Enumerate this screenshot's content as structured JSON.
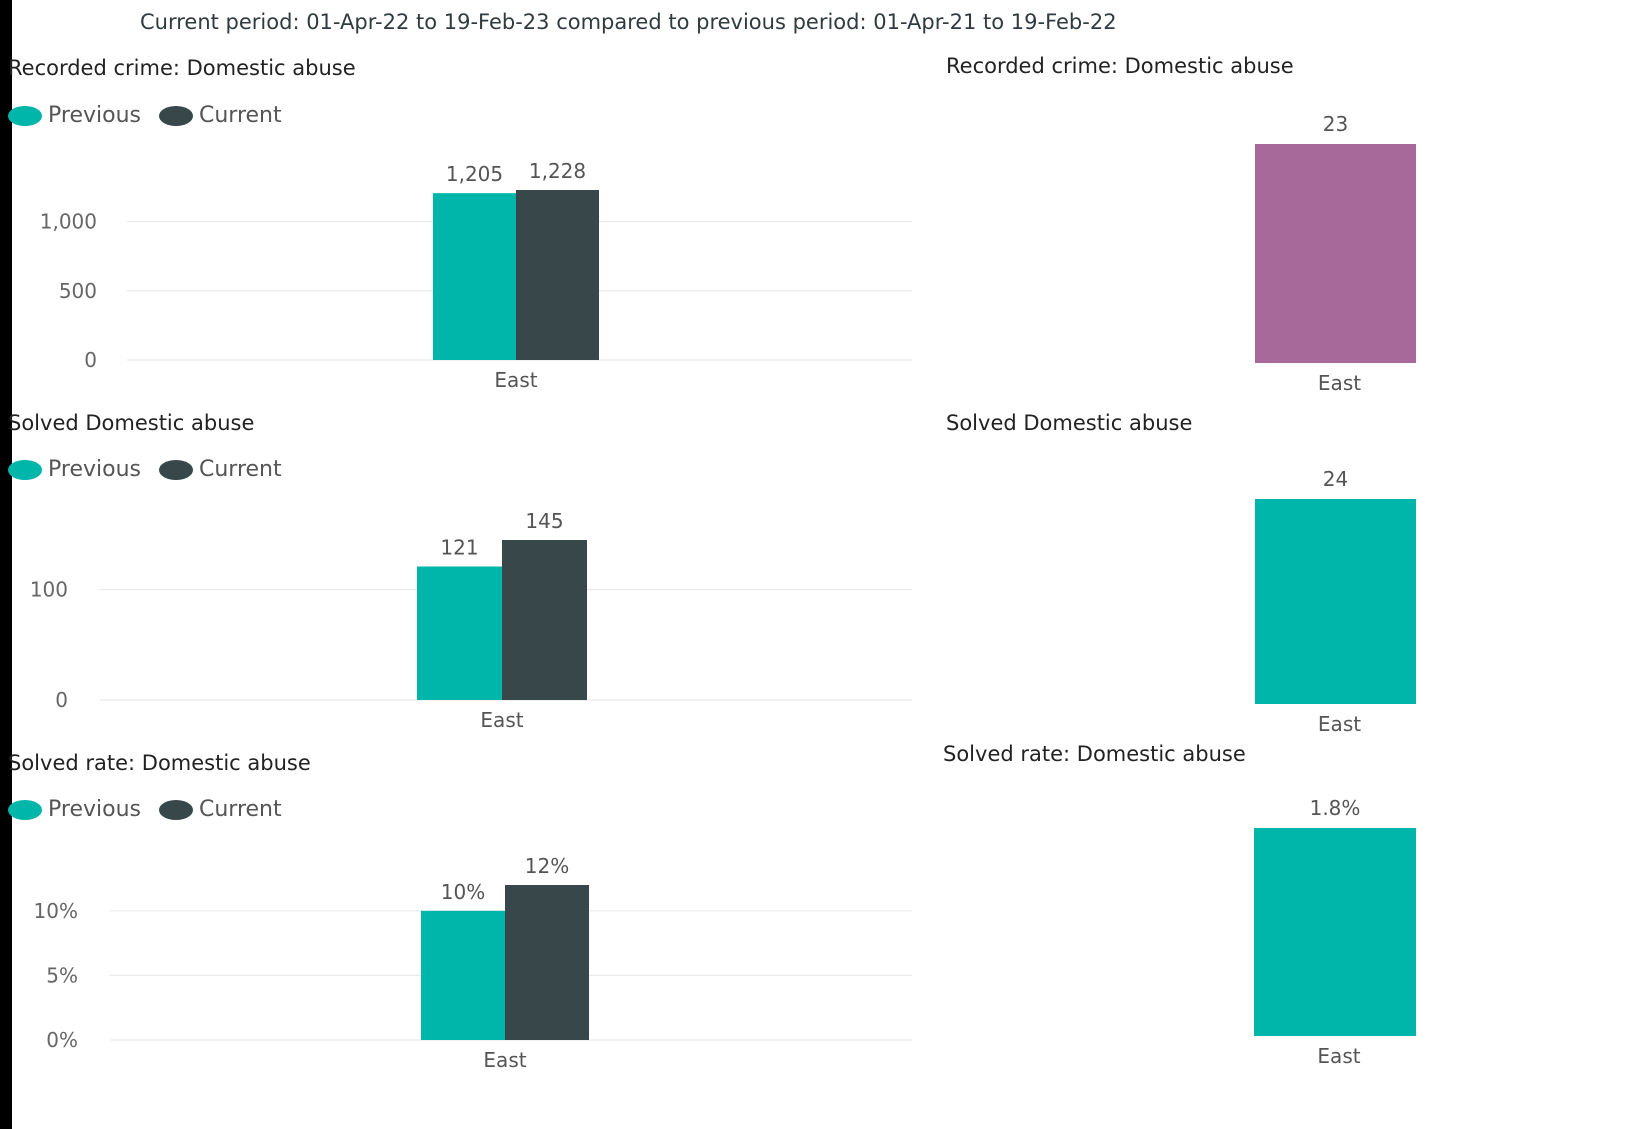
{
  "header": {
    "text": "Current period: 01-Apr-22 to 19-Feb-23 compared to previous period: 01-Apr-21 to 19-Feb-22"
  },
  "colors": {
    "previous": "#00b5aa",
    "current": "#37474a",
    "difference_recorded": "#a66999",
    "difference_solved": "#00b5aa"
  },
  "legend": {
    "previous": "Previous",
    "current": "Current"
  },
  "chart_data": [
    {
      "type": "bar",
      "title": "Recorded crime: Domestic abuse",
      "categories": [
        "East"
      ],
      "series": [
        {
          "name": "Previous",
          "values": [
            1205
          ]
        },
        {
          "name": "Current",
          "values": [
            1228
          ]
        }
      ],
      "data_labels": [
        "1,205",
        "1,228"
      ],
      "yticks": [
        "1,000",
        "500",
        "0"
      ],
      "ylim": [
        0,
        1228
      ],
      "legend": "top-left"
    },
    {
      "type": "bar",
      "title": "Recorded crime: Domestic abuse",
      "categories": [
        "East"
      ],
      "values": [
        23
      ],
      "data_labels": [
        "23"
      ],
      "ylim": [
        0,
        23
      ]
    },
    {
      "type": "bar",
      "title": "Solved Domestic abuse",
      "categories": [
        "East"
      ],
      "series": [
        {
          "name": "Previous",
          "values": [
            121
          ]
        },
        {
          "name": "Current",
          "values": [
            145
          ]
        }
      ],
      "data_labels": [
        "121",
        "145"
      ],
      "yticks": [
        "100",
        "0"
      ],
      "ylim": [
        0,
        145
      ],
      "legend": "top-left"
    },
    {
      "type": "bar",
      "title": "Solved Domestic abuse",
      "categories": [
        "East"
      ],
      "values": [
        24
      ],
      "data_labels": [
        "24"
      ],
      "ylim": [
        0,
        24
      ]
    },
    {
      "type": "bar",
      "title": "Solved rate: Domestic abuse",
      "categories": [
        "East"
      ],
      "series": [
        {
          "name": "Previous",
          "values": [
            10
          ]
        },
        {
          "name": "Current",
          "values": [
            12
          ]
        }
      ],
      "data_labels": [
        "10%",
        "12%"
      ],
      "yticks": [
        "10%",
        "5%",
        "0%"
      ],
      "ylim": [
        0,
        12
      ],
      "legend": "top-left"
    },
    {
      "type": "bar",
      "title": "Solved rate: Domestic abuse",
      "categories": [
        "East"
      ],
      "values": [
        1.8
      ],
      "data_labels": [
        "1.8%"
      ],
      "ylim": [
        0,
        1.8
      ]
    }
  ]
}
